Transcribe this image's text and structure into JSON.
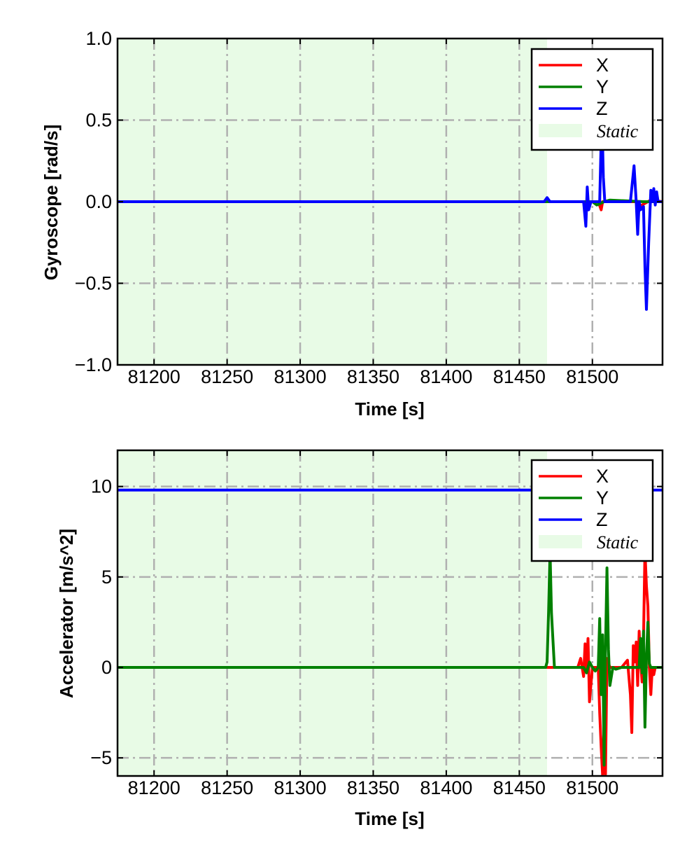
{
  "chart_data": [
    {
      "type": "line",
      "xlabel": "Time [s]",
      "ylabel": "Gyroscope [rad/s]",
      "xlim": [
        81175,
        81548
      ],
      "ylim": [
        -1.0,
        1.0
      ],
      "xticks": [
        81200,
        81250,
        81300,
        81350,
        81400,
        81450,
        81500
      ],
      "xtick_labels": [
        "81200",
        "81250",
        "81300",
        "81350",
        "81400",
        "81450",
        "81500"
      ],
      "yticks": [
        -1.0,
        -0.5,
        0.0,
        0.5,
        1.0
      ],
      "ytick_labels": [
        "−1.0",
        "−0.5",
        "0.0",
        "0.5",
        "1.0"
      ],
      "grid": true,
      "legend_position": "top-right",
      "static_region": {
        "label": "Static",
        "x_start": 81175,
        "x_end": 81469,
        "color": "#e8fbe6"
      },
      "series": [
        {
          "name": "X",
          "color": "#ff0000",
          "x": [
            81175,
            81469,
            81495,
            81497,
            81499,
            81504,
            81506,
            81507,
            81509,
            81530,
            81532,
            81538,
            81540,
            81548
          ],
          "y": [
            0.0,
            0.0,
            0.0,
            -0.05,
            0.0,
            0.0,
            -0.05,
            0.0,
            0.0,
            0.0,
            -0.03,
            0.0,
            0.01,
            0.0
          ]
        },
        {
          "name": "Y",
          "color": "#008000",
          "x": [
            81175,
            81469,
            81500,
            81503,
            81508,
            81512,
            81535,
            81548
          ],
          "y": [
            0.0,
            0.0,
            0.0,
            -0.02,
            0.0,
            0.01,
            0.0,
            0.0
          ]
        },
        {
          "name": "Z",
          "color": "#0000ff",
          "x": [
            81175,
            81467,
            81469,
            81471,
            81494,
            81495.5,
            81496.5,
            81497.5,
            81499,
            81505,
            81506.5,
            81507.5,
            81508.5,
            81510,
            81526,
            81528.5,
            81530,
            81531,
            81532,
            81533,
            81535,
            81536,
            81537,
            81538.5,
            81540,
            81541,
            81542,
            81543,
            81544,
            81545,
            81546,
            81548
          ],
          "y": [
            0.0,
            0.0,
            0.025,
            0.0,
            0.0,
            -0.15,
            0.09,
            -0.05,
            0.0,
            0.0,
            0.55,
            0.15,
            0.0,
            0.0,
            0.0,
            0.22,
            0.0,
            -0.2,
            0.0,
            -0.05,
            -0.03,
            -0.4,
            -0.66,
            -0.25,
            0.07,
            0.0,
            0.08,
            -0.02,
            0.06,
            0.0,
            0.0,
            0.0
          ]
        }
      ]
    },
    {
      "type": "line",
      "xlabel": "Time [s]",
      "ylabel": "Accelerator [m/s^2]",
      "xlim": [
        81175,
        81548
      ],
      "ylim": [
        -6.0,
        12.0
      ],
      "xticks": [
        81200,
        81250,
        81300,
        81350,
        81400,
        81450,
        81500
      ],
      "xtick_labels": [
        "81200",
        "81250",
        "81300",
        "81350",
        "81400",
        "81450",
        "81500"
      ],
      "yticks": [
        -5,
        0,
        5,
        10
      ],
      "ytick_labels": [
        "−5",
        "0",
        "5",
        "10"
      ],
      "grid": true,
      "legend_position": "top-right",
      "static_region": {
        "label": "Static",
        "x_start": 81175,
        "x_end": 81469,
        "color": "#e8fbe6"
      },
      "series": [
        {
          "name": "X",
          "color": "#ff0000",
          "x": [
            81175,
            81490,
            81492,
            81494,
            81495,
            81496,
            81497,
            81498,
            81500,
            81504,
            81505,
            81506,
            81507,
            81508,
            81509,
            81510,
            81512,
            81520,
            81524,
            81526,
            81527,
            81528,
            81529,
            81530,
            81531,
            81532,
            81533,
            81534,
            81535,
            81536,
            81537,
            81538,
            81539,
            81540,
            81541,
            81542,
            81543,
            81548
          ],
          "y": [
            0.0,
            0.0,
            0.5,
            -0.5,
            1.3,
            -0.2,
            1.6,
            -1.9,
            0.0,
            0.0,
            -2.5,
            -4.4,
            -6.0,
            -3.0,
            -5.9,
            0.5,
            0.0,
            0.0,
            0.4,
            -1.5,
            -3.6,
            1.2,
            0.3,
            1.4,
            -1.0,
            2.0,
            0.3,
            -0.8,
            1.5,
            6.5,
            4.5,
            3.4,
            0.0,
            -1.5,
            0.0,
            -0.4,
            0.0,
            0.0
          ]
        },
        {
          "name": "Y",
          "color": "#008000",
          "x": [
            81175,
            81468,
            81469,
            81470,
            81471,
            81472,
            81474,
            81476,
            81480,
            81494,
            81496,
            81498,
            81500,
            81502,
            81504,
            81505,
            81506,
            81507,
            81508,
            81509,
            81510,
            81511,
            81512,
            81514,
            81516,
            81520,
            81532,
            81533,
            81534,
            81535,
            81536,
            81537,
            81538,
            81539,
            81540,
            81548
          ],
          "y": [
            0.0,
            0.0,
            0.3,
            3.0,
            6.5,
            3.0,
            0.0,
            0.0,
            0.0,
            0.0,
            -0.3,
            0.3,
            0.0,
            -0.2,
            0.0,
            2.7,
            -1.5,
            1.8,
            -5.4,
            1.0,
            5.5,
            1.0,
            -1.0,
            0.0,
            -0.1,
            0.0,
            0.0,
            1.6,
            -0.3,
            2.0,
            -3.3,
            0.5,
            2.5,
            0.2,
            0.0,
            0.0
          ]
        },
        {
          "name": "Z",
          "color": "#0000ff",
          "x": [
            81175,
            81548
          ],
          "y": [
            9.8,
            9.8
          ]
        }
      ]
    }
  ]
}
